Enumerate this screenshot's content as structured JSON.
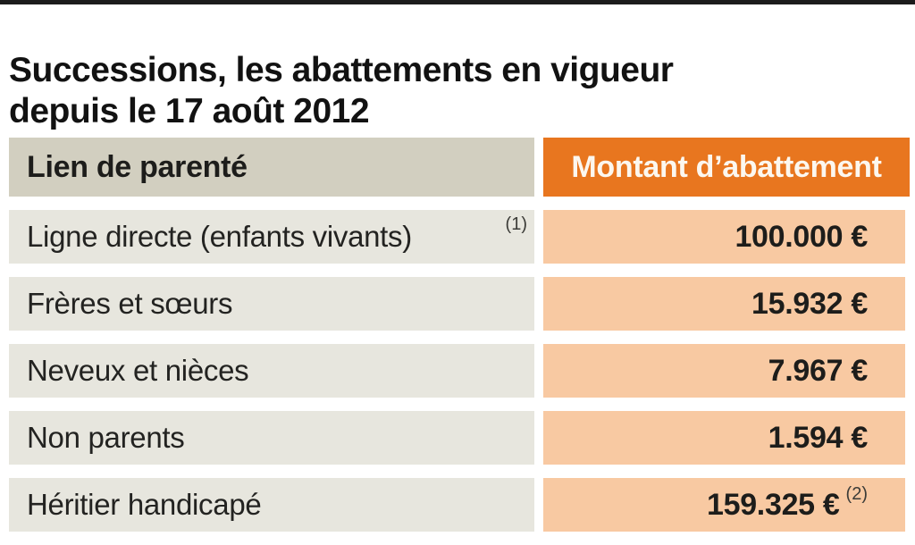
{
  "page": {
    "title_line1": "Successions, les abattements en vigueur",
    "title_line2": "depuis le 17 août 2012"
  },
  "table": {
    "header": {
      "col1": "Lien de parenté",
      "col2": "Montant d’abattement"
    },
    "rows": [
      {
        "label": "Ligne directe (enfants vivants)",
        "label_note": "(1)",
        "value": "100.000 €",
        "value_note": ""
      },
      {
        "label": "Frères et sœurs",
        "label_note": "",
        "value": "15.932 €",
        "value_note": ""
      },
      {
        "label": "Neveux et nièces",
        "label_note": "",
        "value": "7.967 €",
        "value_note": ""
      },
      {
        "label": "Non parents",
        "label_note": "",
        "value": "1.594 €",
        "value_note": ""
      },
      {
        "label": "Héritier handicapé",
        "label_note": "",
        "value": "159.325 €",
        "value_note": "(2)"
      }
    ]
  },
  "colors": {
    "top_bar": "#1c1c1c",
    "header_left_bg": "#d2cfc0",
    "header_right_bg": "#e8761f",
    "row_left_bg": "#e7e6de",
    "row_right_bg": "#f8c9a2",
    "header_right_text": "#fcf7ef",
    "text": "#1d1d1b"
  },
  "chart_data": {
    "type": "table",
    "title": "Successions, les abattements en vigueur depuis le 17 août 2012",
    "columns": [
      "Lien de parenté",
      "Montant d’abattement"
    ],
    "rows": [
      [
        "Ligne directe (enfants vivants) (1)",
        "100.000 €"
      ],
      [
        "Frères et sœurs",
        "15.932 €"
      ],
      [
        "Neveux et nièces",
        "7.967 €"
      ],
      [
        "Non parents",
        "1.594 €"
      ],
      [
        "Héritier handicapé",
        "159.325 € (2)"
      ]
    ],
    "values_eur": [
      100000,
      15932,
      7967,
      1594,
      159325
    ],
    "footnote_markers_visible": [
      "(1)",
      "(2)"
    ],
    "layout": {
      "legend": "none",
      "grid": "off",
      "last_row_clipped": true
    }
  }
}
